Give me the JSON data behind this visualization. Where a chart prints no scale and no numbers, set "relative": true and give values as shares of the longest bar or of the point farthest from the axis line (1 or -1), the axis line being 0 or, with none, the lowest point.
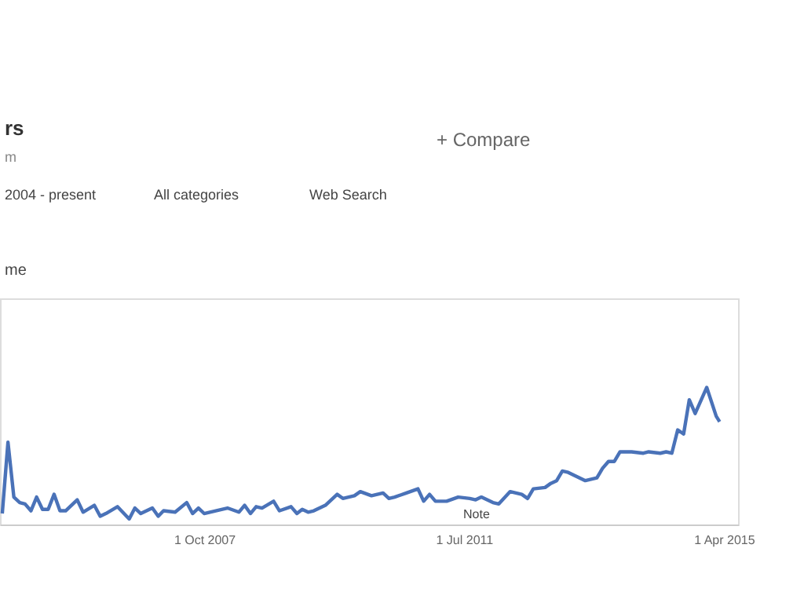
{
  "chart_data": {
    "type": "line",
    "relative": true,
    "x": [
      "2004-11-01",
      "2004-12-01",
      "2005-01-01",
      "2005-02-01",
      "2005-03-01",
      "2005-04-01",
      "2005-05-01",
      "2005-06-01",
      "2005-07-01",
      "2005-08-01",
      "2005-09-01",
      "2005-10-01",
      "2005-12-01",
      "2006-01-01",
      "2006-03-01",
      "2006-04-01",
      "2006-05-01",
      "2006-07-01",
      "2006-09-01",
      "2006-10-01",
      "2006-11-01",
      "2007-01-01",
      "2007-02-01",
      "2007-03-01",
      "2007-05-01",
      "2007-07-01",
      "2007-08-01",
      "2007-09-01",
      "2007-10-01",
      "2007-12-01",
      "2008-02-01",
      "2008-04-01",
      "2008-05-01",
      "2008-06-01",
      "2008-07-01",
      "2008-08-01",
      "2008-10-01",
      "2008-11-01",
      "2009-01-01",
      "2009-02-01",
      "2009-03-01",
      "2009-04-01",
      "2009-05-01",
      "2009-07-01",
      "2009-09-01",
      "2009-10-01",
      "2009-12-01",
      "2010-01-01",
      "2010-03-01",
      "2010-05-01",
      "2010-06-01",
      "2010-07-01",
      "2010-09-01",
      "2010-11-01",
      "2010-12-01",
      "2011-01-01",
      "2011-02-01",
      "2011-04-01",
      "2011-06-01",
      "2011-08-01",
      "2011-09-01",
      "2011-10-01",
      "2011-12-01",
      "2012-01-01",
      "2012-03-01",
      "2012-05-01",
      "2012-06-01",
      "2012-07-01",
      "2012-09-01",
      "2012-10-01",
      "2012-11-01",
      "2012-12-01",
      "2013-01-01",
      "2013-04-01",
      "2013-06-01",
      "2013-07-01",
      "2013-08-01",
      "2013-09-01",
      "2013-10-01",
      "2013-12-01",
      "2014-02-01",
      "2014-03-01",
      "2014-05-01",
      "2014-06-01",
      "2014-07-01",
      "2014-08-01",
      "2014-09-01",
      "2014-10-01",
      "2014-11-01",
      "2015-01-01",
      "2015-02-20",
      "2015-03-10"
    ],
    "series": [
      {
        "color": "#4a72b8",
        "values": [
          0.08,
          0.6,
          0.2,
          0.16,
          0.15,
          0.1,
          0.2,
          0.11,
          0.11,
          0.22,
          0.1,
          0.1,
          0.18,
          0.09,
          0.14,
          0.06,
          0.08,
          0.13,
          0.04,
          0.12,
          0.08,
          0.12,
          0.06,
          0.1,
          0.09,
          0.16,
          0.08,
          0.12,
          0.08,
          0.1,
          0.12,
          0.09,
          0.14,
          0.08,
          0.13,
          0.12,
          0.17,
          0.1,
          0.13,
          0.08,
          0.11,
          0.09,
          0.1,
          0.14,
          0.22,
          0.19,
          0.21,
          0.24,
          0.21,
          0.23,
          0.19,
          0.2,
          0.23,
          0.26,
          0.17,
          0.22,
          0.17,
          0.17,
          0.2,
          0.19,
          0.18,
          0.2,
          0.16,
          0.15,
          0.24,
          0.22,
          0.19,
          0.26,
          0.27,
          0.3,
          0.32,
          0.39,
          0.38,
          0.32,
          0.34,
          0.41,
          0.46,
          0.46,
          0.53,
          0.53,
          0.52,
          0.53,
          0.52,
          0.53,
          0.52,
          0.69,
          0.66,
          0.91,
          0.81,
          1.0,
          0.79,
          0.75
        ]
      }
    ],
    "xlim": [
      "2004-10-20",
      "2015-06-15"
    ],
    "xticks": [
      {
        "value": "2007-10-01",
        "label": "1 Oct 2007"
      },
      {
        "value": "2011-07-01",
        "label": "1 Jul 2011"
      },
      {
        "value": "2015-04-01",
        "label": "1 Apr 2015"
      }
    ],
    "marker": "none",
    "line_style": "solid",
    "tick_labels": "x",
    "annotations": [
      "rs",
      "m",
      "+ Compare",
      "2004 - present",
      "All categories",
      "Web Search",
      "me",
      "Note"
    ]
  }
}
